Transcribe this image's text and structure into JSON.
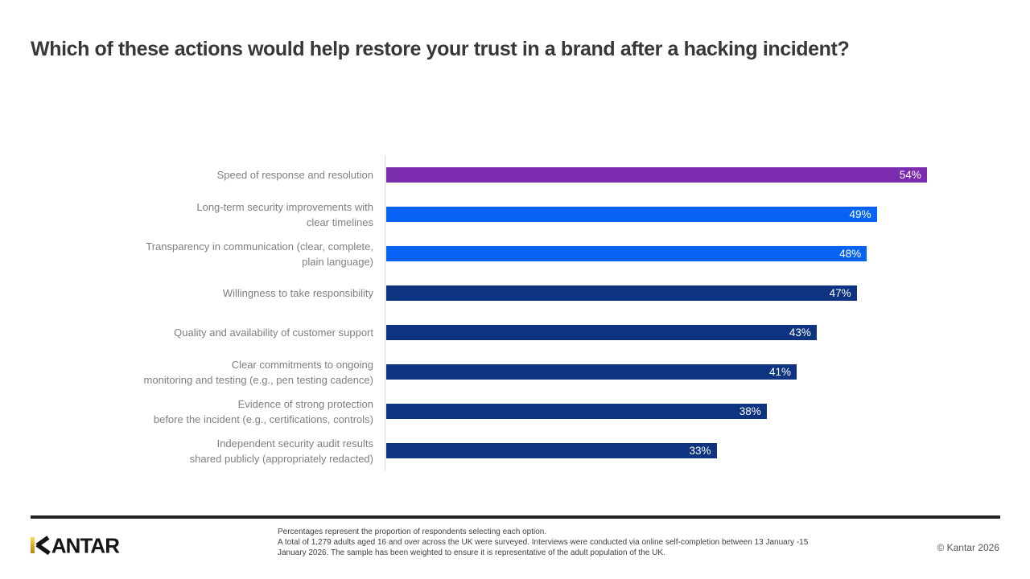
{
  "title": "Which of these actions would help restore your trust in a brand after a hacking incident?",
  "chart_data": {
    "type": "bar",
    "orientation": "horizontal",
    "title": "Which of these actions would help restore your trust in a brand after a hacking incident?",
    "unit": "%",
    "xlim": [
      0,
      56
    ],
    "gridlines": false,
    "value_label_position": "inside-end",
    "categories": [
      "Speed of response and resolution",
      "Long-term security improvements with\nclear timelines",
      "Transparency in communication (clear, complete,\nplain language)",
      "Willingness to take responsibility",
      "Quality and availability of customer support",
      "Clear commitments to ongoing\nmonitoring and testing (e.g., pen testing cadence)",
      "Evidence of strong protection\nbefore the incident (e.g., certifications, controls)",
      "Independent security audit results\nshared publicly (appropriately redacted)"
    ],
    "values": [
      54,
      49,
      48,
      47,
      43,
      41,
      38,
      33
    ],
    "value_labels": [
      "54%",
      "49%",
      "48%",
      "47%",
      "43%",
      "41%",
      "38%",
      "33%"
    ],
    "bar_colors": [
      "#7C2CAE",
      "#0763F3",
      "#0763F3",
      "#0E3380",
      "#0E3380",
      "#0E3380",
      "#0E3380",
      "#0E3380"
    ]
  },
  "footer": {
    "brand": "KANTAR",
    "notes": [
      "Percentages represent the proportion of respondents selecting each option.",
      "A total of 1,279 adults aged 16 and over across the UK were surveyed. Interviews were conducted via online self-completion between 13 January -15",
      "January 2026. The sample has been weighted to ensure it is representative of the adult population of the UK."
    ],
    "copyright": "© Kantar 2026"
  },
  "colors": {
    "accent_purple": "#7C2CAE",
    "bright_blue": "#0763F3",
    "navy": "#0E3380",
    "divider": "#232323",
    "kantar_gold": "#E3A934",
    "category_label": "#7F7F7F",
    "title_text": "#383838"
  }
}
